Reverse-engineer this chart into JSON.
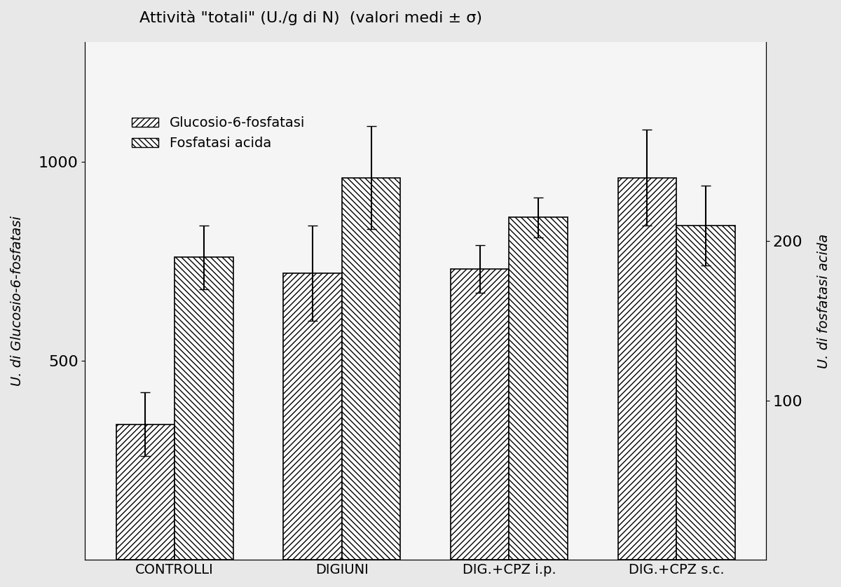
{
  "title": "Attività \"totali\" (U./g di N)  (valori medi ± σ)",
  "ylabel_left": "U. di Glucosio-6-fosfatasi",
  "ylabel_right": "U. di fosfatasi acida",
  "categories": [
    "CONTROLLI",
    "DIGIUNI",
    "DIG.+CPZ i.p.",
    "DIG.+CPZ s.c."
  ],
  "series1_label": "Glucosio-6-fosfatasi",
  "series2_label": "Fosfatasi acida",
  "series1_values": [
    340,
    720,
    730,
    960
  ],
  "series2_values": [
    760,
    960,
    860,
    840
  ],
  "series1_errors": [
    80,
    120,
    60,
    120
  ],
  "series2_errors": [
    80,
    130,
    50,
    100
  ],
  "ylim_left": [
    0,
    1300
  ],
  "ylim_right": [
    0,
    325
  ],
  "yticks_left": [
    500,
    1000
  ],
  "yticks_right": [
    100,
    200
  ],
  "background_color": "#f5f5f5",
  "bar_width": 0.35,
  "figure_bg": "#e8e8e8"
}
